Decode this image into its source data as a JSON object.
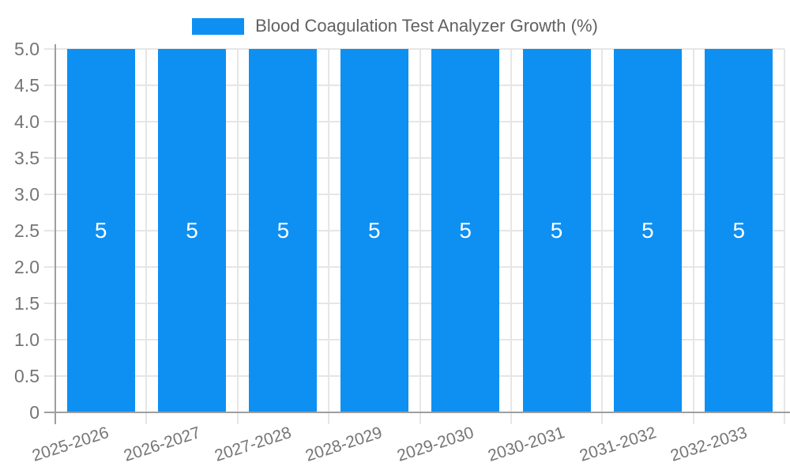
{
  "chart_data": {
    "type": "bar",
    "title": "Blood Coagulation Test Analyzer Growth (%)",
    "legend": {
      "label": "Blood Coagulation Test Analyzer Growth (%)",
      "position": "top"
    },
    "categories": [
      "2025-2026",
      "2026-2027",
      "2027-2028",
      "2028-2029",
      "2029-2030",
      "2030-2031",
      "2031-2032",
      "2032-2033"
    ],
    "values": [
      5,
      5,
      5,
      5,
      5,
      5,
      5,
      5
    ],
    "bar_labels": [
      "5",
      "5",
      "5",
      "5",
      "5",
      "5",
      "5",
      "5"
    ],
    "xlabel": "",
    "ylabel": "",
    "ylim": [
      0,
      5
    ],
    "y_ticks": [
      {
        "value": 0,
        "label": "0"
      },
      {
        "value": 0.5,
        "label": "0.5"
      },
      {
        "value": 1,
        "label": "1.0"
      },
      {
        "value": 1.5,
        "label": "1.5"
      },
      {
        "value": 2,
        "label": "2.0"
      },
      {
        "value": 2.5,
        "label": "2.5"
      },
      {
        "value": 3,
        "label": "3.0"
      },
      {
        "value": 3.5,
        "label": "3.5"
      },
      {
        "value": 4,
        "label": "4.0"
      },
      {
        "value": 4.5,
        "label": "4.5"
      },
      {
        "value": 5,
        "label": "5.0"
      }
    ],
    "grid": {
      "horizontal": true,
      "vertical": true
    },
    "x_label_rotation_deg": -18,
    "colors": {
      "bar": "#0e90f2",
      "grid": "#e6e6e6",
      "axis": "#9e9e9e",
      "tick_text": "#757575",
      "legend_text": "#616161",
      "bar_label": "#ffffff",
      "background": "#ffffff"
    }
  }
}
